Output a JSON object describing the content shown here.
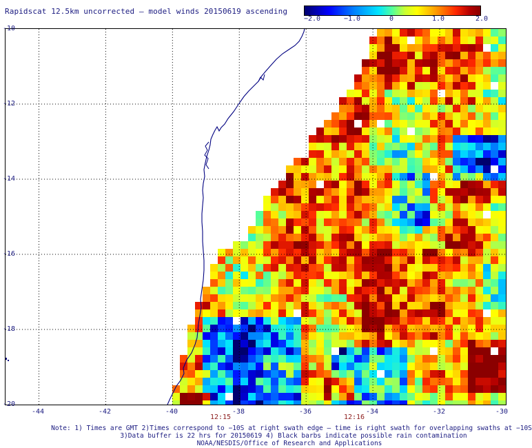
{
  "title": "Rapidscat 12.5km uncorrected — model winds 20150619 ascending",
  "colorbar": {
    "ticks": [
      "−2.0",
      "−1.0",
      "0",
      "1.0",
      "2.0"
    ],
    "range": [
      -2.0,
      2.0
    ],
    "colors": [
      "#00006e",
      "#0000ff",
      "#0080ff",
      "#00e5ff",
      "#55ff9a",
      "#c8ff32",
      "#ffff00",
      "#ff9900",
      "#ff2800",
      "#b40000",
      "#8b0000"
    ]
  },
  "axes": {
    "latitude_labels": [
      "-10",
      "-12",
      "-14",
      "-16",
      "-18",
      "-20"
    ],
    "longitude_labels": [
      "-44",
      "-42",
      "-40",
      "-38",
      "-36",
      "-34",
      "-32",
      "-30"
    ],
    "lon_range": [
      -45,
      -30
    ],
    "lat_range": [
      -20,
      -10
    ],
    "grid": true
  },
  "times": [
    "12:15",
    "12:16"
  ],
  "notes": [
    "Note: 1) Times are GMT 2)Times correspond to −10S at right swath edge — time is right swath for overlapping swaths at −10S",
    "3)Data buffer is 22 hrs for 20150619 4) Black barbs indicate possible rain contamination",
    "NOAA/NESDIS/Office of Research and Applications"
  ],
  "colors": {
    "text": "#1a1a80",
    "time_text": "#8b1a1a",
    "coastline": "#000080",
    "grid": "#000000"
  }
}
